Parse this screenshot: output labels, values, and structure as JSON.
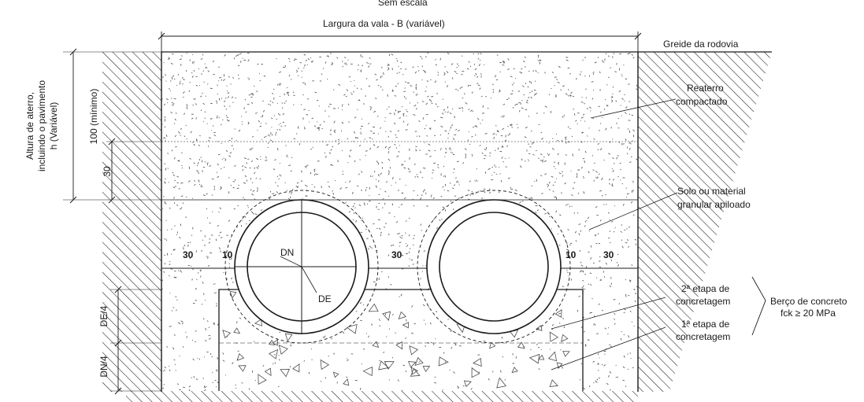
{
  "header": {
    "scale_note": "Sem escala",
    "trench_width": "Largura da vala - B (variável)",
    "road_grade": "Greide da rodovia"
  },
  "dimensions": {
    "fill_height_line1": "Altura de aterro,",
    "fill_height_line2": "incluindo o pavimento",
    "fill_height_line3": "h (Variável)",
    "min_cover": "100 (mínimo)",
    "cover_30": "30",
    "de_quarter": "DE/4",
    "dn_quarter": "DN/4",
    "side_left_30": "30",
    "side_left_10": "10",
    "between_30": "30",
    "side_right_10": "10",
    "side_right_30": "30",
    "pipe_dn": "DN",
    "pipe_de": "DE"
  },
  "callouts": {
    "backfill_line1": "Reaterro",
    "backfill_line2": "compactado",
    "granular_line1": "Solo ou material",
    "granular_line2": "granular apiloado",
    "stage2_line1": "2ª etapa de",
    "stage2_line2": "concretagem",
    "stage1_line1": "1ª etapa de",
    "stage1_line2": "concretagem",
    "cradle_line1": "Berço de concreto",
    "cradle_line2": "fck ≥ 20 MPa"
  },
  "colors": {
    "ink": "#1a1a1a",
    "background": "#ffffff",
    "speckle": "#4a4a4a"
  }
}
